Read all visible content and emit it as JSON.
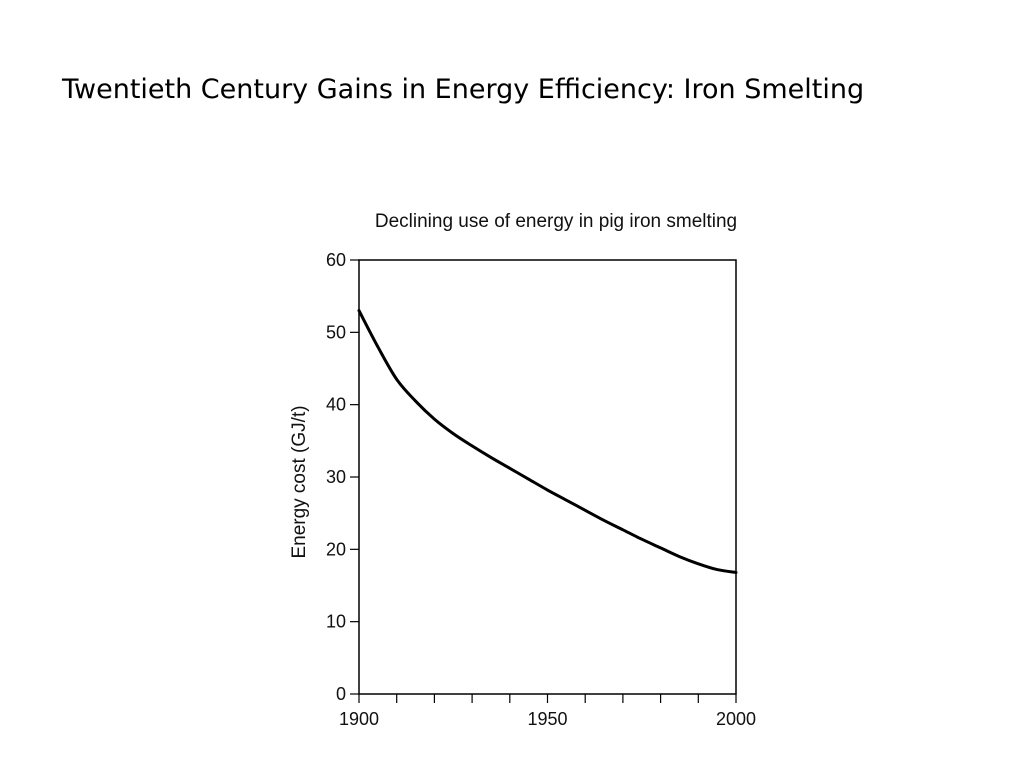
{
  "slide": {
    "title": "Twentieth Century Gains in Energy Efficiency: Iron Smelting"
  },
  "chart_data": {
    "type": "line",
    "title": "Declining use of energy in pig iron smelting",
    "xlabel": "",
    "ylabel": "Energy cost (GJ/t)",
    "xlim": [
      1900,
      2000
    ],
    "ylim": [
      0,
      60
    ],
    "x_ticks": [
      1900,
      1950,
      2000
    ],
    "x_minor_step": 10,
    "y_ticks": [
      0,
      10,
      20,
      30,
      40,
      50,
      60
    ],
    "grid": false,
    "series": [
      {
        "color": "#000000",
        "x": [
          1900,
          1905,
          1910,
          1915,
          1920,
          1925,
          1930,
          1935,
          1940,
          1945,
          1950,
          1955,
          1960,
          1965,
          1970,
          1975,
          1980,
          1985,
          1990,
          1995,
          2000
        ],
        "y": [
          53,
          48,
          43.5,
          40.5,
          38,
          36,
          34.3,
          32.7,
          31.2,
          29.7,
          28.2,
          26.8,
          25.4,
          24,
          22.7,
          21.4,
          20.2,
          19,
          18,
          17.2,
          16.8
        ]
      }
    ]
  }
}
